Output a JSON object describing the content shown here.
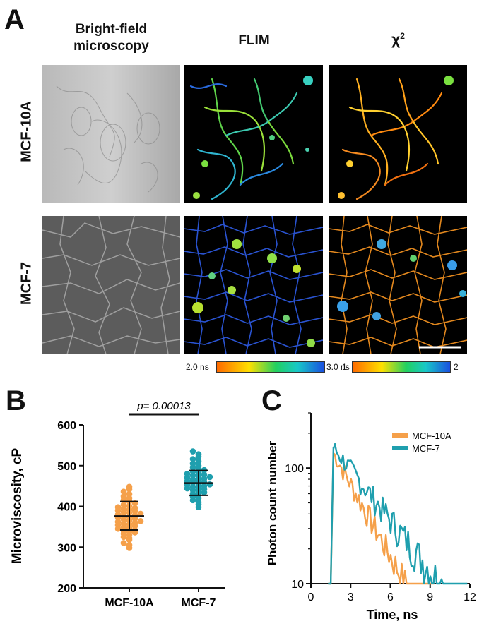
{
  "panel_a": {
    "letter": "A",
    "columns": [
      "Bright-field microscopy",
      "FLIM",
      "χ²"
    ],
    "column_bright_line1": "Bright-field",
    "column_bright_line2": "microscopy",
    "column_flim": "FLIM",
    "column_chi_base": "χ",
    "column_chi_sup": "2",
    "rows": [
      "MCF-10A",
      "MCF-7"
    ],
    "flim_colorbar": {
      "min_label": "2.0 ns",
      "max_label": "3.0 ns"
    },
    "chi_colorbar": {
      "min_label": "1",
      "max_label": "2"
    },
    "colors": {
      "colorbar_start": "#ff6a00",
      "colorbar_mid1": "#ffe000",
      "colorbar_mid2": "#22d060",
      "colorbar_mid3": "#18c8c8",
      "colorbar_end": "#1a4fe0"
    }
  },
  "panel_b": {
    "letter": "B",
    "chart_data": {
      "type": "scatter",
      "ylabel": "Microviscosity, cP",
      "categories": [
        "MCF-10A",
        "MCF-7"
      ],
      "ylim": [
        200,
        600
      ],
      "yticks": [
        200,
        300,
        400,
        500,
        600
      ],
      "annotation": "p= 0.00013",
      "series": [
        {
          "name": "MCF-10A",
          "color": "#f5a04a",
          "mean": 376,
          "sd_low": 342,
          "sd_high": 412,
          "values": [
            298,
            305,
            310,
            318,
            322,
            325,
            330,
            333,
            336,
            338,
            340,
            342,
            345,
            347,
            349,
            352,
            354,
            356,
            358,
            360,
            362,
            364,
            366,
            368,
            370,
            372,
            374,
            376,
            378,
            380,
            382,
            384,
            386,
            388,
            390,
            392,
            394,
            396,
            398,
            401,
            404,
            408,
            412,
            416,
            420,
            425,
            430,
            436,
            442,
            448
          ]
        },
        {
          "name": "MCF-7",
          "color": "#1f9fae",
          "mean": 457,
          "sd_low": 427,
          "sd_high": 488,
          "values": [
            398,
            405,
            410,
            415,
            420,
            424,
            428,
            431,
            434,
            437,
            440,
            442,
            444,
            446,
            448,
            450,
            452,
            454,
            456,
            458,
            460,
            462,
            464,
            466,
            468,
            470,
            472,
            474,
            476,
            478,
            480,
            483,
            486,
            489,
            492,
            496,
            500,
            505,
            510,
            516,
            522,
            528,
            535
          ]
        }
      ]
    }
  },
  "panel_c": {
    "letter": "C",
    "chart_data": {
      "type": "line",
      "xlabel": "Time, ns",
      "ylabel": "Photon count number",
      "yscale": "log",
      "xlim": [
        0,
        12
      ],
      "ylim": [
        10,
        300
      ],
      "xticks": [
        0,
        3,
        6,
        9,
        12
      ],
      "yticks": [
        10,
        100
      ],
      "legend_position": "top-right",
      "series": [
        {
          "name": "MCF-10A",
          "color": "#f5a04a",
          "onset": 1.5,
          "peak_time": 1.7,
          "peak": 135,
          "tau": 2.1,
          "end": 9.3
        },
        {
          "name": "MCF-7",
          "color": "#1f9fae",
          "onset": 1.5,
          "peak_time": 1.7,
          "peak": 150,
          "tau": 3.0,
          "end": 11.8
        }
      ]
    }
  }
}
